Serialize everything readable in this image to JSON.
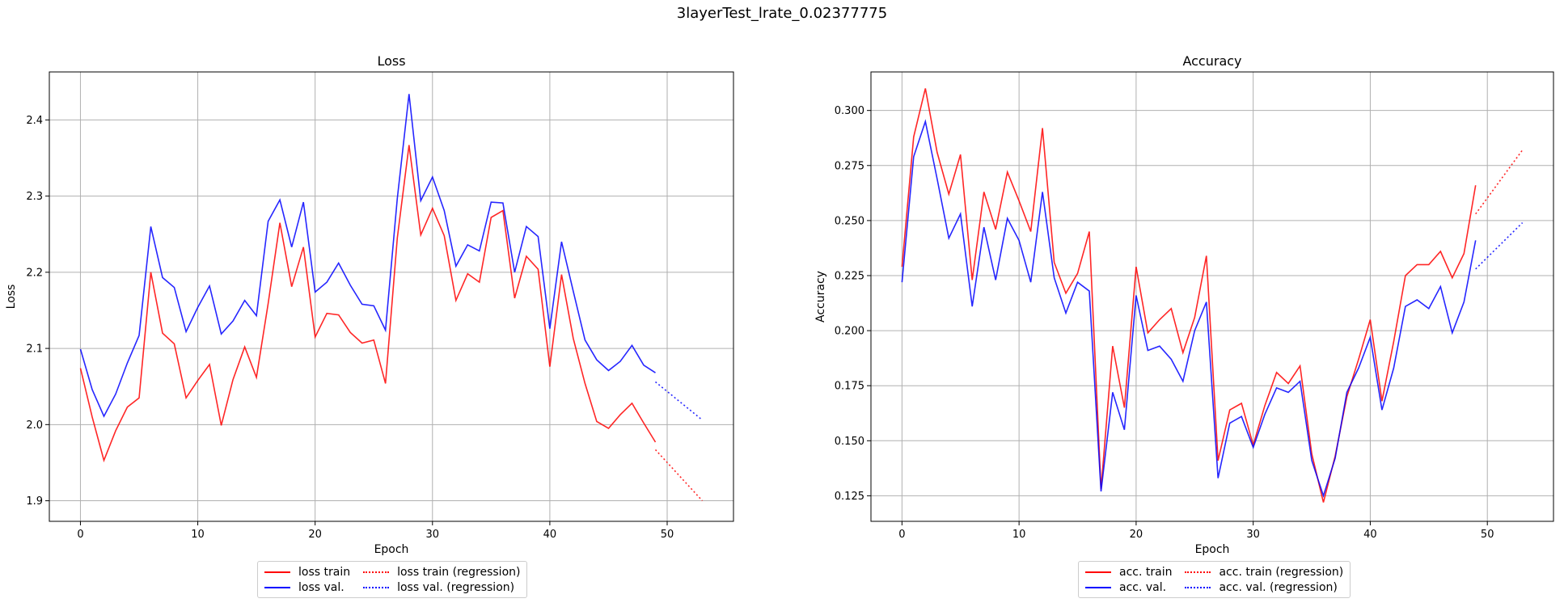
{
  "suptitle": "3layerTest_lrate_0.02377775",
  "chart_data": [
    {
      "type": "line",
      "title": "Loss",
      "xlabel": "Epoch",
      "ylabel": "Loss",
      "xlim": [
        -2.65,
        55.65
      ],
      "ylim": [
        1.873,
        2.463
      ],
      "xticks": [
        0,
        10,
        20,
        30,
        40,
        50
      ],
      "yticks": [
        1.9,
        2.0,
        2.1,
        2.2,
        2.3,
        2.4
      ],
      "ytick_labels": [
        "1.9",
        "2.0",
        "2.1",
        "2.2",
        "2.3",
        "2.4"
      ],
      "grid": true,
      "legend_placement": "below",
      "series": [
        {
          "name": "loss train",
          "color": "#ff0000",
          "style": "solid",
          "x": [
            0,
            1,
            2,
            3,
            4,
            5,
            6,
            7,
            8,
            9,
            10,
            11,
            12,
            13,
            14,
            15,
            16,
            17,
            18,
            19,
            20,
            21,
            22,
            23,
            24,
            25,
            26,
            27,
            28,
            29,
            30,
            31,
            32,
            33,
            34,
            35,
            36,
            37,
            38,
            39,
            40,
            41,
            42,
            43,
            44,
            45,
            46,
            47,
            48,
            49
          ],
          "values": [
            2.074,
            2.01,
            1.953,
            1.992,
            2.023,
            2.035,
            2.2,
            2.12,
            2.106,
            2.035,
            2.058,
            2.079,
            1.999,
            2.059,
            2.102,
            2.062,
            2.159,
            2.265,
            2.181,
            2.233,
            2.115,
            2.146,
            2.144,
            2.121,
            2.107,
            2.111,
            2.054,
            2.245,
            2.367,
            2.249,
            2.284,
            2.248,
            2.163,
            2.198,
            2.187,
            2.272,
            2.281,
            2.166,
            2.221,
            2.204,
            2.076,
            2.197,
            2.113,
            2.054,
            2.004,
            1.995,
            2.013,
            2.028,
            2.002,
            1.977
          ]
        },
        {
          "name": "loss val.",
          "color": "#0000ff",
          "style": "solid",
          "x": [
            0,
            1,
            2,
            3,
            4,
            5,
            6,
            7,
            8,
            9,
            10,
            11,
            12,
            13,
            14,
            15,
            16,
            17,
            18,
            19,
            20,
            21,
            22,
            23,
            24,
            25,
            26,
            27,
            28,
            29,
            30,
            31,
            32,
            33,
            34,
            35,
            36,
            37,
            38,
            39,
            40,
            41,
            42,
            43,
            44,
            45,
            46,
            47,
            48,
            49
          ],
          "values": [
            2.099,
            2.046,
            2.011,
            2.04,
            2.081,
            2.117,
            2.26,
            2.193,
            2.18,
            2.122,
            2.154,
            2.182,
            2.119,
            2.136,
            2.163,
            2.143,
            2.267,
            2.295,
            2.233,
            2.292,
            2.174,
            2.187,
            2.212,
            2.183,
            2.158,
            2.156,
            2.124,
            2.297,
            2.434,
            2.294,
            2.325,
            2.281,
            2.208,
            2.236,
            2.228,
            2.292,
            2.291,
            2.2,
            2.26,
            2.247,
            2.126,
            2.24,
            2.175,
            2.111,
            2.085,
            2.071,
            2.083,
            2.104,
            2.078,
            2.068
          ]
        },
        {
          "name": "loss train (regression)",
          "color": "#ff0000",
          "style": "dotted",
          "x": [
            49,
            53
          ],
          "values": [
            1.967,
            1.9
          ]
        },
        {
          "name": "loss val. (regression)",
          "color": "#0000ff",
          "style": "dotted",
          "x": [
            49,
            53
          ],
          "values": [
            2.056,
            2.006
          ]
        }
      ]
    },
    {
      "type": "line",
      "title": "Accuracy",
      "xlabel": "Epoch",
      "ylabel": "Accuracy",
      "xlim": [
        -2.65,
        55.65
      ],
      "ylim": [
        0.1134,
        0.3175
      ],
      "xticks": [
        0,
        10,
        20,
        30,
        40,
        50
      ],
      "yticks": [
        0.125,
        0.15,
        0.175,
        0.2,
        0.225,
        0.25,
        0.275,
        0.3
      ],
      "ytick_labels": [
        "0.125",
        "0.150",
        "0.175",
        "0.200",
        "0.225",
        "0.250",
        "0.275",
        "0.300"
      ],
      "grid": true,
      "legend_placement": "below",
      "series": [
        {
          "name": "acc. train",
          "color": "#ff0000",
          "style": "solid",
          "x": [
            0,
            1,
            2,
            3,
            4,
            5,
            6,
            7,
            8,
            9,
            10,
            11,
            12,
            13,
            14,
            15,
            16,
            17,
            18,
            19,
            20,
            21,
            22,
            23,
            24,
            25,
            26,
            27,
            28,
            29,
            30,
            31,
            32,
            33,
            34,
            35,
            36,
            37,
            38,
            39,
            40,
            41,
            42,
            43,
            44,
            45,
            46,
            47,
            48,
            49
          ],
          "values": [
            0.229,
            0.288,
            0.31,
            0.281,
            0.262,
            0.28,
            0.223,
            0.263,
            0.246,
            0.272,
            0.259,
            0.245,
            0.292,
            0.231,
            0.217,
            0.226,
            0.245,
            0.128,
            0.193,
            0.165,
            0.229,
            0.199,
            0.205,
            0.21,
            0.19,
            0.206,
            0.234,
            0.141,
            0.164,
            0.167,
            0.148,
            0.166,
            0.181,
            0.176,
            0.184,
            0.144,
            0.122,
            0.143,
            0.17,
            0.187,
            0.205,
            0.168,
            0.195,
            0.225,
            0.23,
            0.23,
            0.236,
            0.224,
            0.235,
            0.266
          ]
        },
        {
          "name": "acc. val.",
          "color": "#0000ff",
          "style": "solid",
          "x": [
            0,
            1,
            2,
            3,
            4,
            5,
            6,
            7,
            8,
            9,
            10,
            11,
            12,
            13,
            14,
            15,
            16,
            17,
            18,
            19,
            20,
            21,
            22,
            23,
            24,
            25,
            26,
            27,
            28,
            29,
            30,
            31,
            32,
            33,
            34,
            35,
            36,
            37,
            38,
            39,
            40,
            41,
            42,
            43,
            44,
            45,
            46,
            47,
            48,
            49
          ],
          "values": [
            0.222,
            0.279,
            0.295,
            0.269,
            0.242,
            0.253,
            0.211,
            0.247,
            0.223,
            0.251,
            0.241,
            0.222,
            0.263,
            0.224,
            0.208,
            0.222,
            0.218,
            0.127,
            0.172,
            0.155,
            0.216,
            0.191,
            0.193,
            0.187,
            0.177,
            0.2,
            0.213,
            0.133,
            0.158,
            0.161,
            0.147,
            0.162,
            0.174,
            0.172,
            0.177,
            0.141,
            0.125,
            0.142,
            0.172,
            0.183,
            0.197,
            0.164,
            0.183,
            0.211,
            0.214,
            0.21,
            0.22,
            0.199,
            0.213,
            0.241
          ]
        },
        {
          "name": "acc. train (regression)",
          "color": "#ff0000",
          "style": "dotted",
          "x": [
            49,
            53
          ],
          "values": [
            0.253,
            0.282
          ]
        },
        {
          "name": "acc. val. (regression)",
          "color": "#0000ff",
          "style": "dotted",
          "x": [
            49,
            53
          ],
          "values": [
            0.228,
            0.249
          ]
        }
      ]
    }
  ]
}
